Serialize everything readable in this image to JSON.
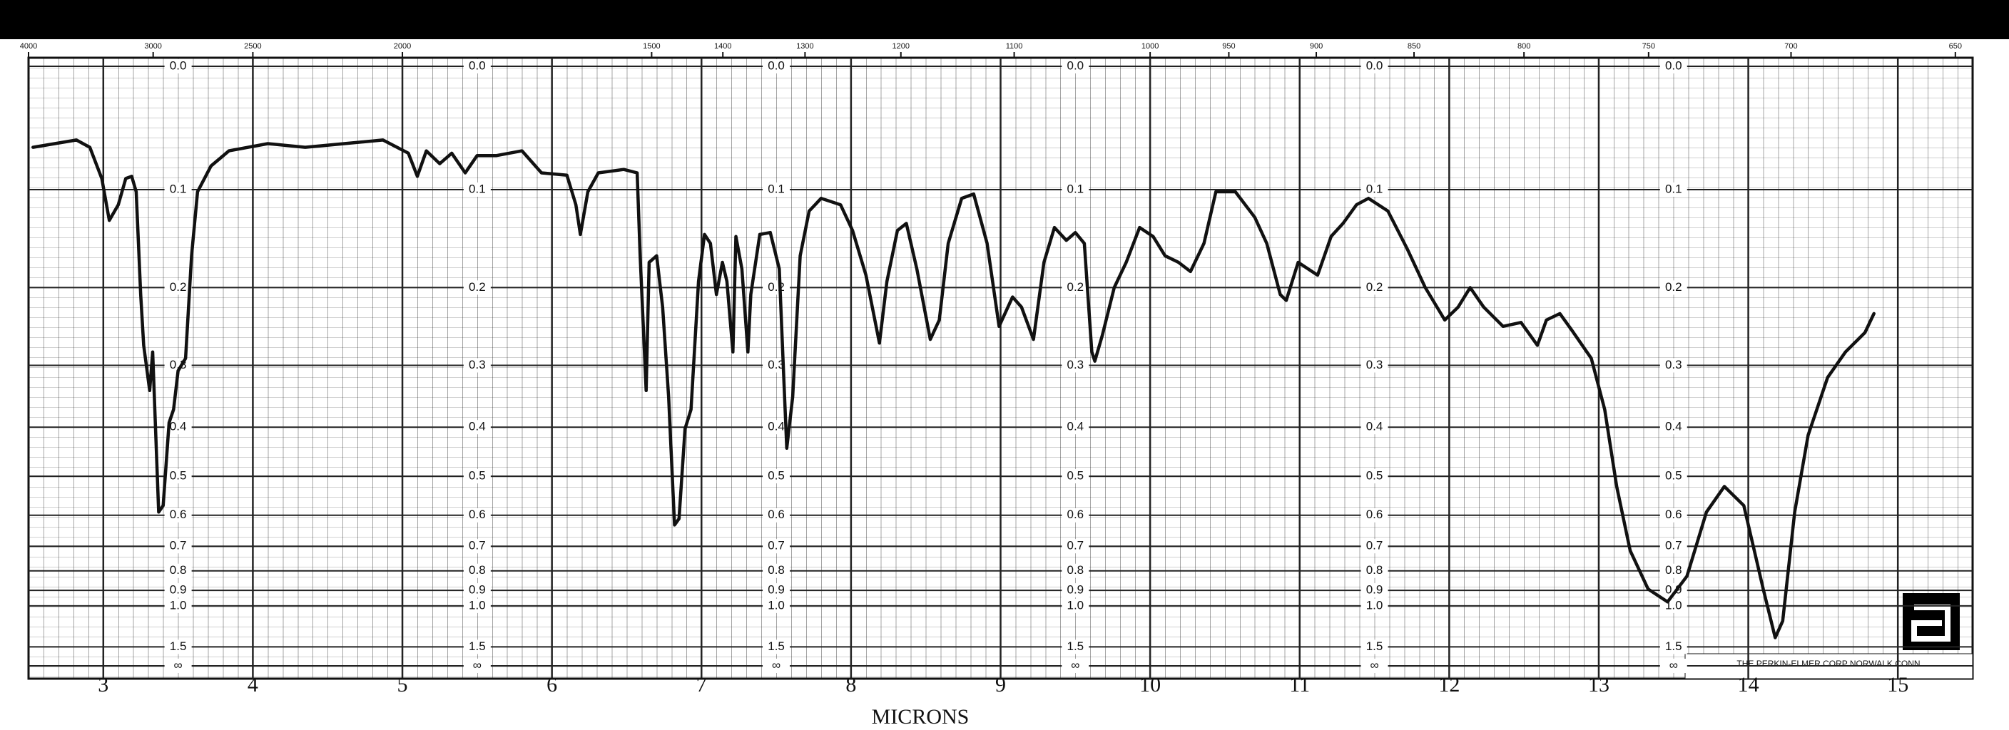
{
  "chart_data": {
    "type": "line",
    "xlabel": "MICRONS",
    "annotation": "THE PERKIN-ELMER CORP NORWALK CONN",
    "color": "#111111",
    "xlim": [
      2.5,
      15.5
    ],
    "xticks": [
      3,
      4,
      5,
      6,
      7,
      8,
      9,
      10,
      11,
      12,
      13,
      14,
      15
    ],
    "x2scale": "reciprocal",
    "x2ticks": [
      4000,
      3000,
      2500,
      2000,
      1500,
      1400,
      1300,
      1200,
      1100,
      1000,
      950,
      900,
      850,
      800,
      750,
      700,
      650
    ],
    "yscale": "absorbance",
    "ylim": [
      0,
      null
    ],
    "yticks": [
      {
        "value": 0,
        "label": "0.0"
      },
      0.1,
      0.2,
      0.3,
      0.4,
      0.5,
      0.6,
      0.7,
      0.8,
      0.9,
      {
        "value": 1,
        "label": "1.0"
      },
      1.5,
      {
        "value": null,
        "label": "∞"
      }
    ],
    "grid": true,
    "x": [
      2.53,
      2.82,
      2.91,
      2.99,
      3.04,
      3.1,
      3.15,
      3.19,
      3.22,
      3.25,
      3.27,
      3.31,
      3.33,
      3.37,
      3.4,
      3.44,
      3.47,
      3.5,
      3.55,
      3.59,
      3.63,
      3.72,
      3.84,
      4.1,
      4.35,
      4.61,
      4.87,
      5.04,
      5.1,
      5.16,
      5.25,
      5.33,
      5.42,
      5.5,
      5.63,
      5.8,
      5.93,
      6.1,
      6.16,
      6.19,
      6.24,
      6.31,
      6.48,
      6.57,
      6.59,
      6.63,
      6.65,
      6.7,
      6.74,
      6.78,
      6.82,
      6.85,
      6.89,
      6.93,
      6.98,
      7.02,
      7.06,
      7.1,
      7.14,
      7.17,
      7.21,
      7.23,
      7.27,
      7.31,
      7.33,
      7.39,
      7.46,
      7.52,
      7.55,
      7.57,
      7.61,
      7.66,
      7.72,
      7.8,
      7.93,
      8.01,
      8.1,
      8.19,
      8.24,
      8.31,
      8.37,
      8.44,
      8.53,
      8.59,
      8.65,
      8.74,
      8.82,
      8.91,
      8.99,
      9.08,
      9.14,
      9.22,
      9.29,
      9.36,
      9.44,
      9.5,
      9.56,
      9.61,
      9.63,
      9.68,
      9.76,
      9.84,
      9.93,
      10.02,
      10.1,
      10.19,
      10.27,
      10.36,
      10.44,
      10.57,
      10.7,
      10.78,
      10.87,
      10.91,
      10.99,
      11.12,
      11.21,
      11.29,
      11.38,
      11.46,
      11.59,
      11.72,
      11.84,
      11.97,
      12.06,
      12.14,
      12.23,
      12.36,
      12.48,
      12.59,
      12.65,
      12.74,
      12.82,
      12.95,
      13.04,
      13.12,
      13.21,
      13.33,
      13.46,
      13.59,
      13.72,
      13.84,
      13.97,
      14.1,
      14.18,
      14.23,
      14.31,
      14.4,
      14.53,
      14.65,
      14.78,
      14.84
    ],
    "values": [
      0.063,
      0.057,
      0.063,
      0.09,
      0.129,
      0.114,
      0.09,
      0.088,
      0.102,
      0.208,
      0.272,
      0.338,
      0.281,
      0.591,
      0.573,
      0.392,
      0.369,
      0.308,
      0.29,
      0.165,
      0.102,
      0.079,
      0.066,
      0.06,
      0.063,
      0.06,
      0.057,
      0.068,
      0.088,
      0.066,
      0.077,
      0.068,
      0.085,
      0.07,
      0.07,
      0.066,
      0.085,
      0.087,
      0.114,
      0.143,
      0.102,
      0.085,
      0.082,
      0.085,
      0.165,
      0.338,
      0.172,
      0.165,
      0.223,
      0.348,
      0.629,
      0.61,
      0.403,
      0.369,
      0.193,
      0.143,
      0.152,
      0.208,
      0.172,
      0.193,
      0.281,
      0.145,
      0.179,
      0.281,
      0.208,
      0.143,
      0.141,
      0.179,
      0.318,
      0.44,
      0.348,
      0.165,
      0.12,
      0.108,
      0.114,
      0.139,
      0.186,
      0.269,
      0.193,
      0.139,
      0.132,
      0.179,
      0.264,
      0.239,
      0.152,
      0.108,
      0.104,
      0.152,
      0.247,
      0.211,
      0.223,
      0.264,
      0.172,
      0.136,
      0.149,
      0.141,
      0.152,
      0.281,
      0.294,
      0.259,
      0.2,
      0.172,
      0.136,
      0.145,
      0.165,
      0.172,
      0.182,
      0.152,
      0.102,
      0.102,
      0.126,
      0.152,
      0.208,
      0.215,
      0.172,
      0.186,
      0.145,
      0.132,
      0.114,
      0.108,
      0.12,
      0.158,
      0.2,
      0.239,
      0.223,
      0.2,
      0.223,
      0.247,
      0.242,
      0.272,
      0.239,
      0.231,
      0.252,
      0.29,
      0.369,
      0.524,
      0.716,
      0.892,
      0.972,
      0.825,
      0.591,
      0.524,
      0.573,
      0.892,
      1.328,
      1.126,
      0.591,
      0.415,
      0.318,
      0.281,
      0.255,
      0.231
    ]
  }
}
